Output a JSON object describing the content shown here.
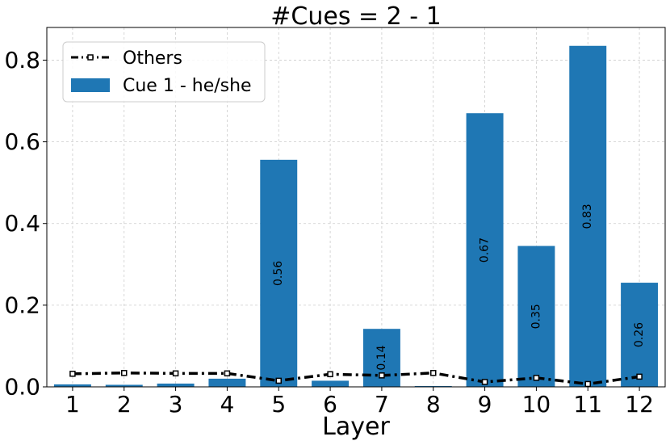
{
  "chart_data": {
    "type": "bar",
    "title": "#Cues = 2 - 1",
    "xlabel": "Layer",
    "ylabel": "",
    "categories": [
      "1",
      "2",
      "3",
      "4",
      "5",
      "6",
      "7",
      "8",
      "9",
      "10",
      "11",
      "12"
    ],
    "ylim": [
      0,
      0.88
    ],
    "yticks": [
      "0.0",
      "0.2",
      "0.4",
      "0.6",
      "0.8"
    ],
    "grid": true,
    "legend_position": "top-left",
    "series": [
      {
        "name": "Cue 1 - he/she",
        "kind": "bar",
        "color": "#1f77b4",
        "values": [
          0.006,
          0.005,
          0.008,
          0.02,
          0.556,
          0.015,
          0.142,
          0.002,
          0.67,
          0.345,
          0.835,
          0.255
        ],
        "data_labels": [
          "",
          "",
          "",
          "",
          "0.56",
          "",
          "0.14",
          "",
          "0.67",
          "0.35",
          "0.83",
          "0.26"
        ]
      },
      {
        "name": "Others",
        "kind": "line",
        "color": "#000000",
        "style": "dash-dot with square markers",
        "values": [
          0.032,
          0.034,
          0.033,
          0.033,
          0.015,
          0.031,
          0.028,
          0.034,
          0.012,
          0.022,
          0.007,
          0.025
        ]
      }
    ]
  }
}
